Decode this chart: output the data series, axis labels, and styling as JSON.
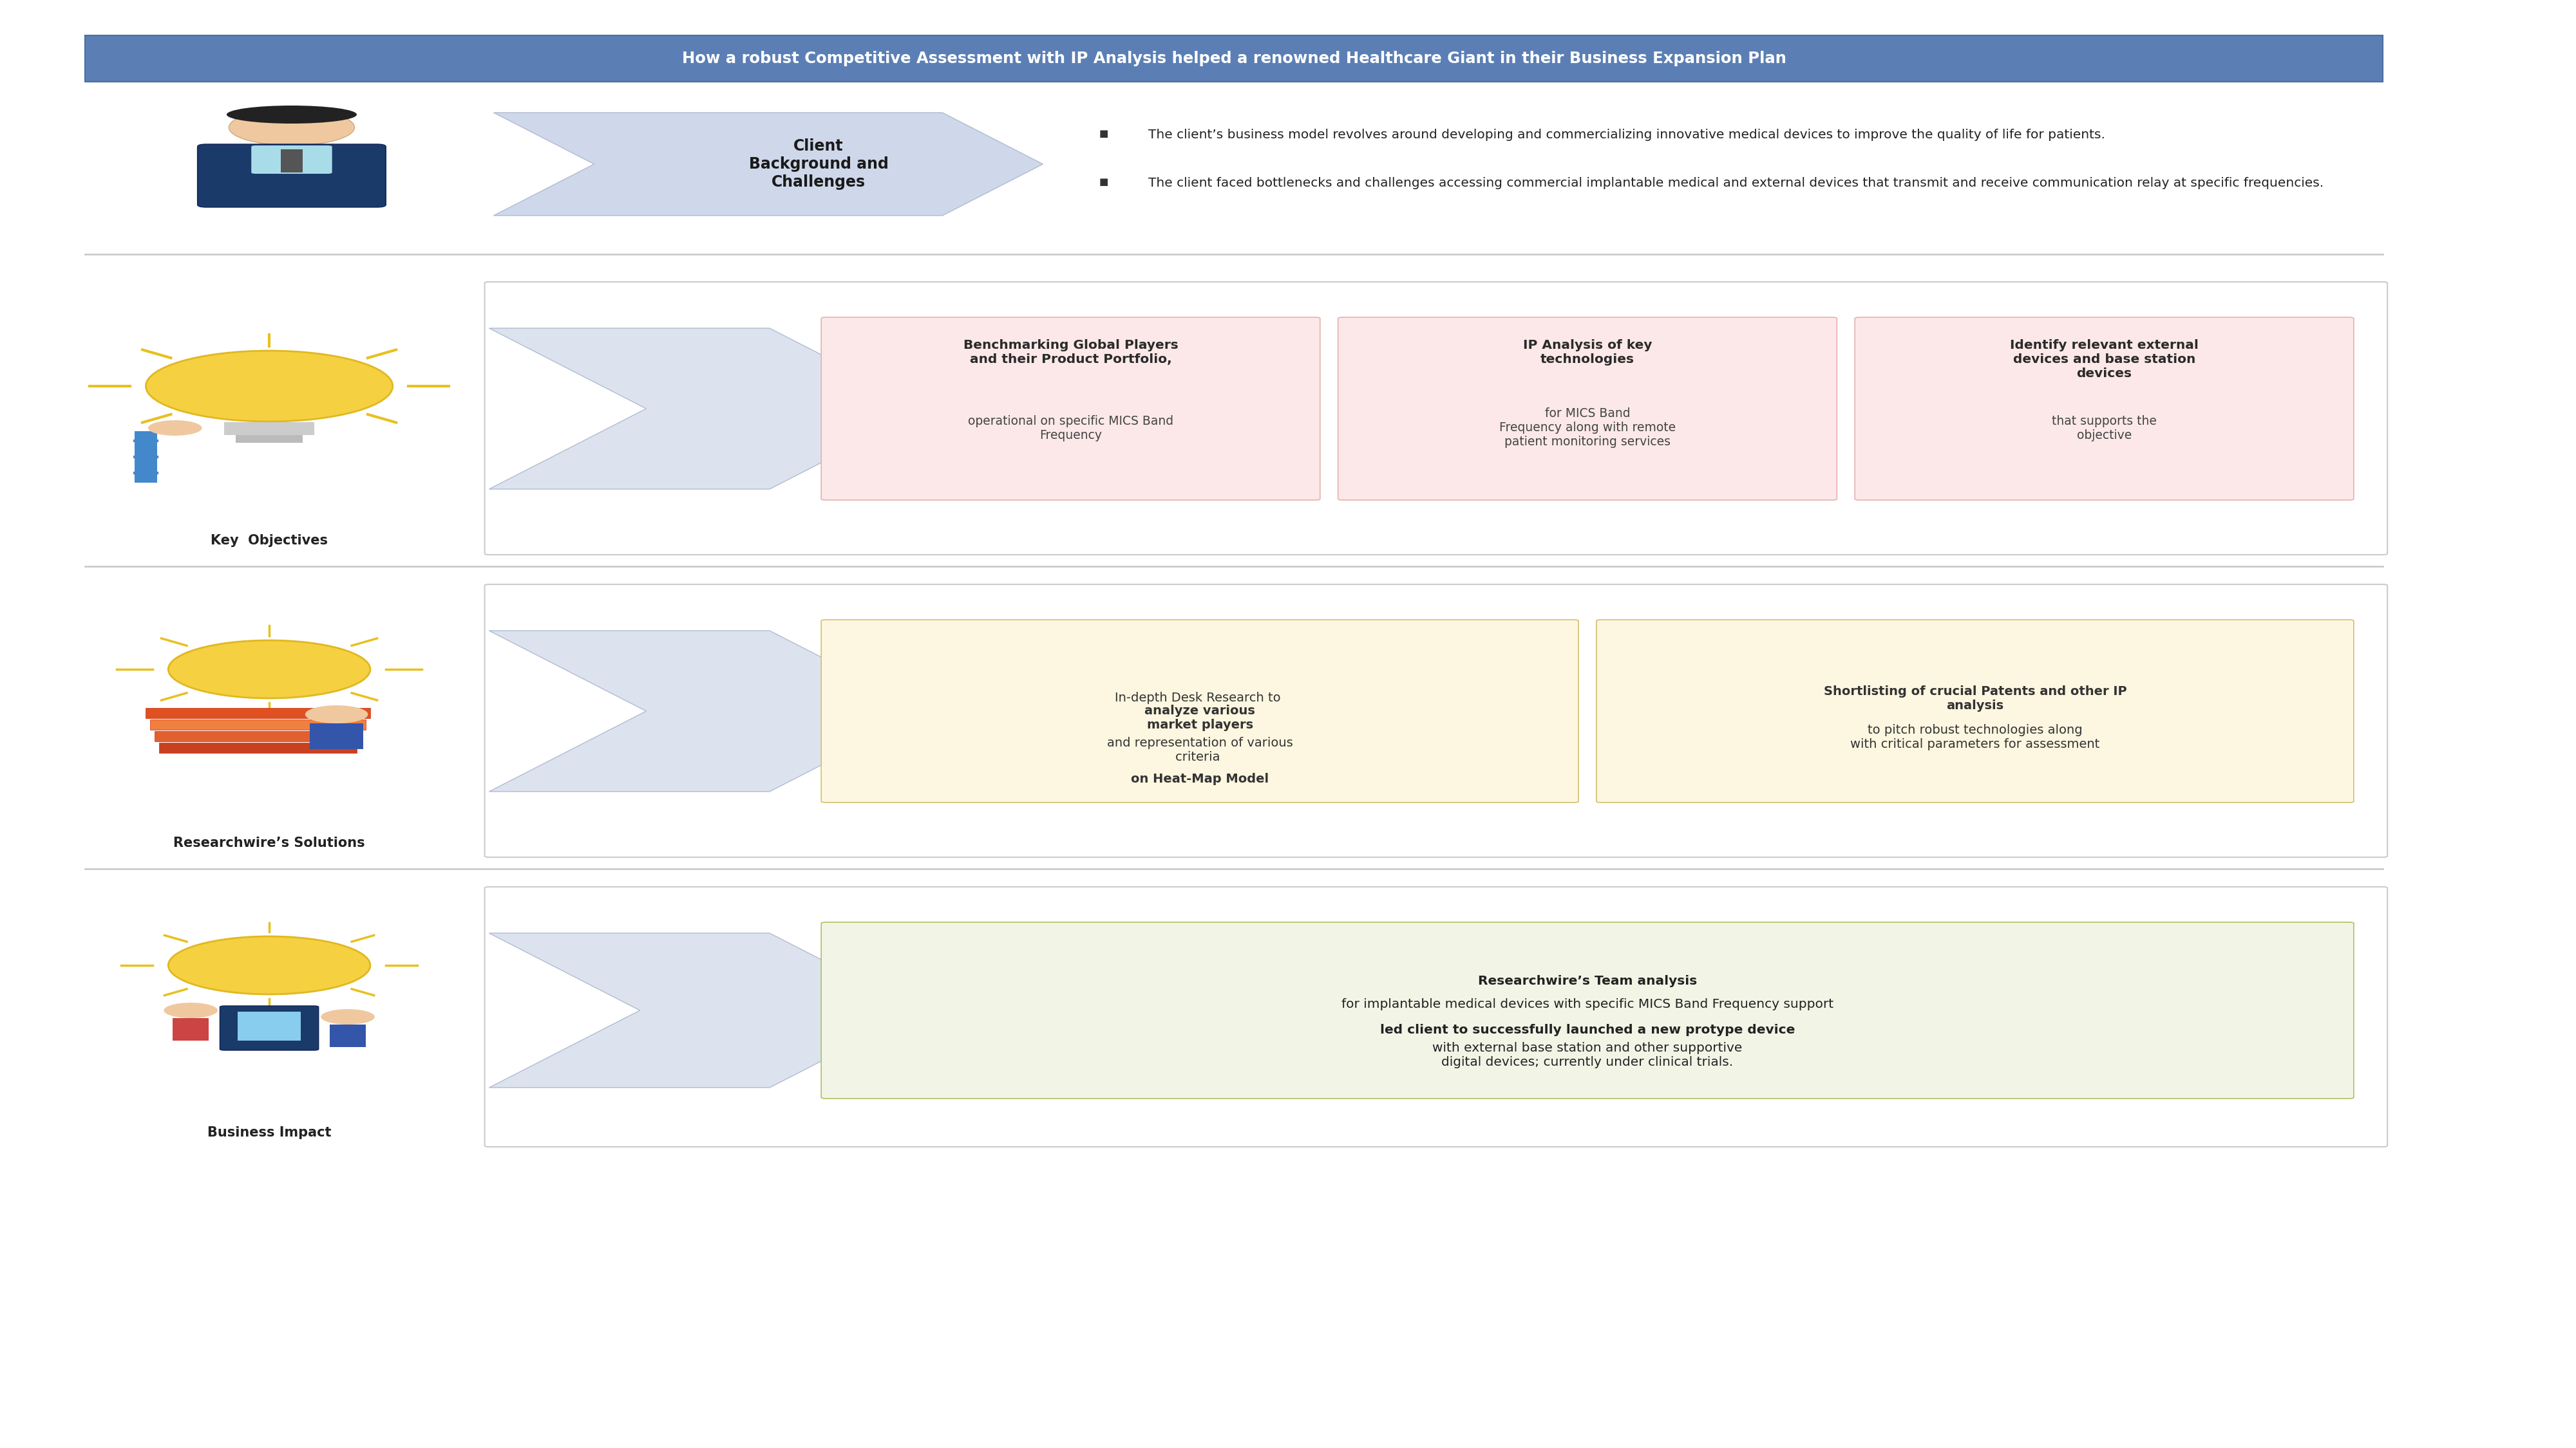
{
  "title": "How a robust Competitive Assessment with IP Analysis helped a renowned Healthcare Giant in their Business Expansion Plan",
  "title_bg": "#5b7fb5",
  "title_color": "#ffffff",
  "bg_color": "#ffffff",
  "client_bg_label": "Client\nBackground and\nChallenges",
  "client_arrow_color": "#cfd8ea",
  "client_bullets": [
    "The client’s business model revolves around developing and commercializing innovative medical devices to improve the quality of life for patients.",
    "The client faced bottlenecks and challenges accessing commercial implantable medical and external devices that transmit and receive communication relay at specific frequencies."
  ],
  "objectives_label": "Key  Objectives",
  "objectives_arrow_color": "#dde3ee",
  "objectives_boxes": [
    {
      "title_bold": "Benchmarking Global Players\nand their Product Portfolio,",
      "body": "operational on specific MICS Band\nFrequency",
      "bg": "#fce8e8",
      "edge": "#e8b0b0"
    },
    {
      "title_bold": "IP Analysis of key\ntechnologies",
      "body": "for MICS Band\nFrequency along with remote\npatient monitoring services",
      "bg": "#fce8e8",
      "edge": "#e8b0b0"
    },
    {
      "title_bold": "Identify relevant external\ndevices and base station\ndevices",
      "body": "that supports the\nobjective",
      "bg": "#fce8e8",
      "edge": "#e8b0b0"
    }
  ],
  "solutions_label": "Researchwire’s Solutions",
  "solutions_arrow_color": "#dde3ee",
  "solutions_boxes": [
    {
      "pre_bold": "",
      "pre_normal": "In-depth Desk Research to ",
      "mid_bold": "analyze various\nmarket players",
      "mid_normal": " and representation of various\ncriteria ",
      "end_bold": "on Heat-Map Model",
      "end_normal": "",
      "bg": "#fdf6e0",
      "edge": "#d4c070"
    },
    {
      "pre_bold": "Shortlisting of crucial Patents and other IP\nanalysis",
      "pre_normal": " to pitch robust technologies along\nwith critical parameters for assessment",
      "mid_bold": "",
      "mid_normal": "",
      "end_bold": "",
      "end_normal": "",
      "bg": "#fdf6e0",
      "edge": "#d4c070"
    }
  ],
  "impact_label": "Business Impact",
  "impact_arrow_color": "#dde3ee",
  "impact_box_bg": "#f2f5e6",
  "impact_box_edge": "#b0c060",
  "impact_bold1": "Researchwire’s Team analysis",
  "impact_normal1": " for implantable medical devices with specific MICS Band Frequency support\n",
  "impact_bold2": "led client to successfully launched a new protype device",
  "impact_normal2": " with external base station and other supportive\ndigital devices; currently under clinical trials.",
  "sep_color": "#cccccc",
  "outer_edge": "#cccccc",
  "outer_bg": "#ffffff"
}
